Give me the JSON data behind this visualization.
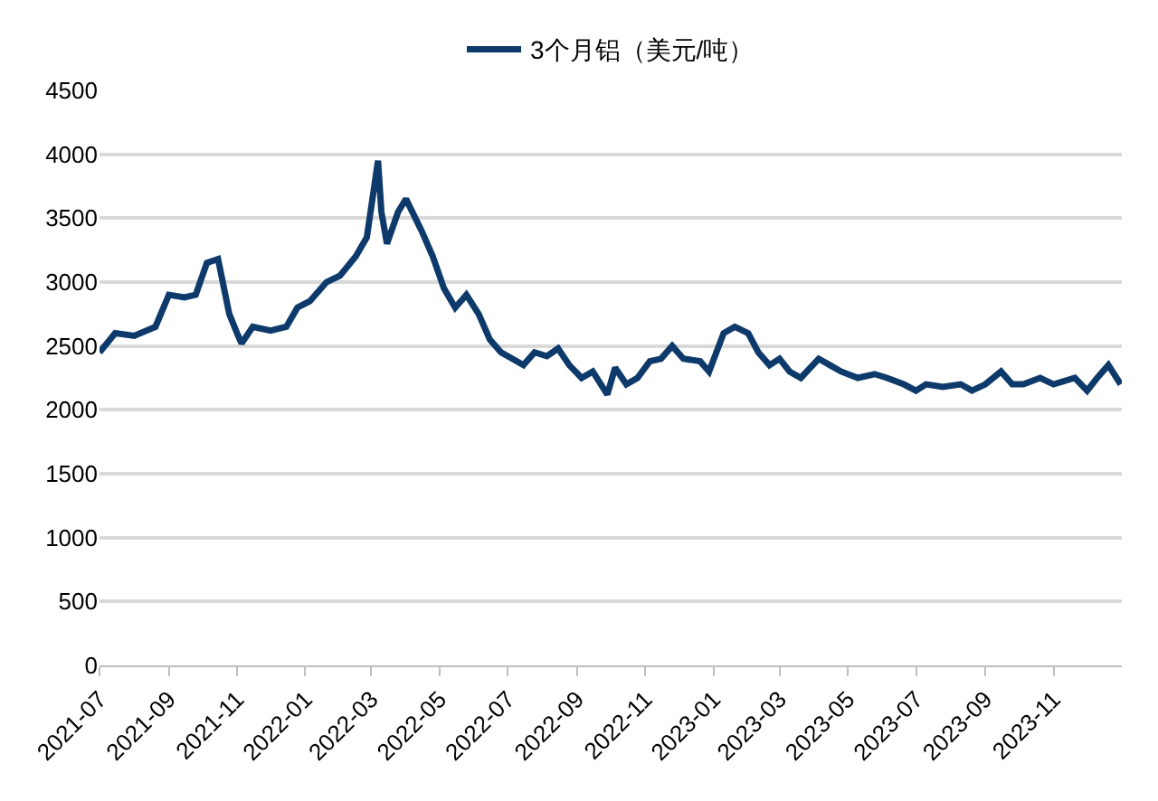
{
  "chart_data": {
    "type": "line",
    "x": [
      "2021-07-01",
      "2021-07-15",
      "2021-08-01",
      "2021-08-20",
      "2021-09-01",
      "2021-09-15",
      "2021-09-25",
      "2021-10-05",
      "2021-10-15",
      "2021-10-25",
      "2021-11-01",
      "2021-11-05",
      "2021-11-15",
      "2021-12-01",
      "2021-12-15",
      "2021-12-25",
      "2022-01-05",
      "2022-01-20",
      "2022-02-01",
      "2022-02-15",
      "2022-02-25",
      "2022-03-07",
      "2022-03-10",
      "2022-03-15",
      "2022-03-25",
      "2022-04-01",
      "2022-04-15",
      "2022-04-25",
      "2022-05-05",
      "2022-05-15",
      "2022-05-25",
      "2022-06-05",
      "2022-06-15",
      "2022-06-25",
      "2022-07-05",
      "2022-07-15",
      "2022-07-25",
      "2022-08-05",
      "2022-08-15",
      "2022-08-25",
      "2022-09-05",
      "2022-09-15",
      "2022-09-28",
      "2022-10-05",
      "2022-10-15",
      "2022-10-25",
      "2022-11-05",
      "2022-11-15",
      "2022-11-25",
      "2022-12-05",
      "2022-12-20",
      "2022-12-28",
      "2023-01-10",
      "2023-01-20",
      "2023-02-01",
      "2023-02-10",
      "2023-02-20",
      "2023-03-01",
      "2023-03-10",
      "2023-03-20",
      "2023-04-05",
      "2023-04-15",
      "2023-04-25",
      "2023-05-10",
      "2023-05-25",
      "2023-06-05",
      "2023-06-20",
      "2023-07-01",
      "2023-07-10",
      "2023-07-25",
      "2023-08-10",
      "2023-08-20",
      "2023-09-01",
      "2023-09-15",
      "2023-09-25",
      "2023-10-05",
      "2023-10-20",
      "2023-11-01",
      "2023-11-20",
      "2023-12-01",
      "2023-12-10",
      "2023-12-20",
      "2023-12-31"
    ],
    "series": [
      {
        "name": "3个月铝（美元/吨）",
        "color": "#0d3a6b",
        "values": [
          2450,
          2600,
          2580,
          2650,
          2900,
          2880,
          2900,
          3150,
          3180,
          2750,
          2600,
          2520,
          2650,
          2620,
          2650,
          2800,
          2850,
          3000,
          3050,
          3200,
          3350,
          3950,
          3550,
          3300,
          3550,
          3650,
          3400,
          3200,
          2950,
          2800,
          2900,
          2750,
          2550,
          2450,
          2400,
          2350,
          2450,
          2420,
          2480,
          2350,
          2250,
          2300,
          2120,
          2330,
          2200,
          2250,
          2380,
          2400,
          2500,
          2400,
          2380,
          2300,
          2600,
          2650,
          2600,
          2450,
          2350,
          2400,
          2300,
          2250,
          2400,
          2350,
          2300,
          2250,
          2280,
          2250,
          2200,
          2150,
          2200,
          2180,
          2200,
          2150,
          2200,
          2300,
          2200,
          2200,
          2250,
          2200,
          2250,
          2150,
          2250,
          2350,
          2200
        ]
      }
    ],
    "xlim": [
      "2021-07-01",
      "2024-01-01"
    ],
    "xticks": [
      {
        "value": "2021-07-01",
        "label": "2021-07"
      },
      {
        "value": "2021-09-01",
        "label": "2021-09"
      },
      {
        "value": "2021-11-01",
        "label": "2021-11"
      },
      {
        "value": "2022-01-01",
        "label": "2022-01"
      },
      {
        "value": "2022-03-01",
        "label": "2022-03"
      },
      {
        "value": "2022-05-01",
        "label": "2022-05"
      },
      {
        "value": "2022-07-01",
        "label": "2022-07"
      },
      {
        "value": "2022-09-01",
        "label": "2022-09"
      },
      {
        "value": "2022-11-01",
        "label": "2022-11"
      },
      {
        "value": "2023-01-01",
        "label": "2023-01"
      },
      {
        "value": "2023-03-01",
        "label": "2023-03"
      },
      {
        "value": "2023-05-01",
        "label": "2023-05"
      },
      {
        "value": "2023-07-01",
        "label": "2023-07"
      },
      {
        "value": "2023-09-01",
        "label": "2023-09"
      },
      {
        "value": "2023-11-01",
        "label": "2023-11"
      }
    ],
    "ylim": [
      0,
      4500
    ],
    "yticks": [
      0,
      500,
      1000,
      1500,
      2000,
      2500,
      3000,
      3500,
      4000,
      4500
    ],
    "grid": "y",
    "legend": "top",
    "marker": "none",
    "line_style": "solid"
  }
}
